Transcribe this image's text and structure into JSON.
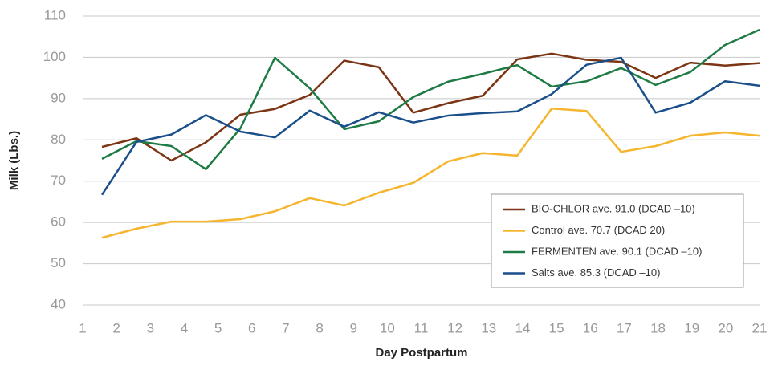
{
  "chart_data": {
    "type": "line",
    "x_label": "Day Postpartum",
    "y_label": "Milk (Lbs.)",
    "x": [
      1.57,
      2.59,
      3.62,
      4.64,
      5.66,
      6.68,
      7.71,
      8.73,
      9.75,
      10.77,
      11.8,
      12.82,
      13.84,
      14.86,
      15.89,
      16.91,
      17.93,
      18.95,
      19.98,
      21.0
    ],
    "series": [
      {
        "name": "BIO-CHLOR ave. 91.0 (DCAD –10)",
        "color": "#7b3514",
        "values": [
          78.3,
          80.4,
          75.0,
          79.4,
          86.1,
          87.5,
          90.9,
          99.2,
          97.6,
          86.6,
          88.9,
          90.7,
          99.5,
          100.9,
          99.4,
          98.9,
          95.0,
          98.7,
          98.0,
          98.6
        ]
      },
      {
        "name": "Control ave. 70.7 (DCAD 20)",
        "color": "#f6b52e",
        "values": [
          56.3,
          58.5,
          60.2,
          60.2,
          60.8,
          62.7,
          65.9,
          64.1,
          67.2,
          69.6,
          74.8,
          76.8,
          76.2,
          87.6,
          87.0,
          77.1,
          78.5,
          81.0,
          81.8,
          81.0
        ]
      },
      {
        "name": "FERMENTEN ave. 90.1 (DCAD –10)",
        "color": "#1e7b45",
        "values": [
          75.4,
          79.7,
          78.5,
          72.9,
          82.8,
          99.9,
          92.5,
          82.6,
          84.5,
          90.4,
          94.1,
          96.0,
          98.1,
          92.9,
          94.2,
          97.4,
          93.3,
          96.4,
          103.0,
          106.7
        ]
      },
      {
        "name": "Salts ave. 85.3 (DCAD –10)",
        "color": "#1b4f8a",
        "values": [
          66.7,
          79.5,
          81.3,
          86.0,
          82.0,
          80.6,
          87.1,
          83.2,
          86.7,
          84.2,
          85.9,
          86.5,
          86.9,
          91.1,
          98.2,
          99.9,
          86.6,
          89.0,
          94.2,
          93.1
        ]
      }
    ],
    "xlim": [
      1,
      21
    ],
    "xticks": [
      1,
      2,
      3,
      4,
      5,
      6,
      7,
      8,
      9,
      10,
      11,
      12,
      13,
      14,
      15,
      16,
      17,
      18,
      19,
      20,
      21
    ],
    "ylim": [
      40,
      110
    ],
    "yticks": [
      40,
      50,
      60,
      70,
      80,
      90,
      100,
      110
    ],
    "grid": true,
    "legend": "lower right"
  }
}
